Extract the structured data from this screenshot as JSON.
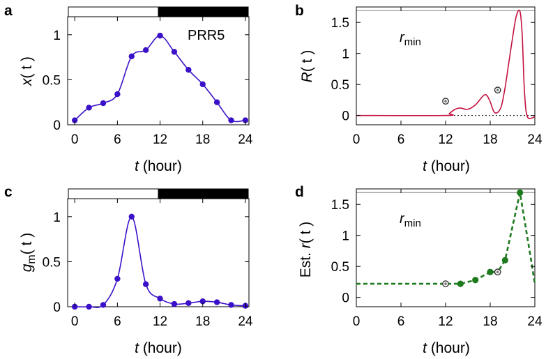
{
  "colors": {
    "blue": "#3a10c8",
    "red": "#c41040",
    "green": "#1e7a1e",
    "gray_line": "#a0a0a0"
  },
  "panels": {
    "a": {
      "letter": "a",
      "ylabel_main": "x",
      "ylabel_arg": "( t )",
      "annotation": "PRR5",
      "xlabel_var": "t",
      "xlabel_unit": " (hour)"
    },
    "b": {
      "letter": "b",
      "ylabel_main": "R",
      "ylabel_arg": "( t )",
      "annotation_main": "r",
      "annotation_sub": "min",
      "xlabel_var": "t",
      "xlabel_unit": " (hour)"
    },
    "c": {
      "letter": "c",
      "ylabel_main": "g",
      "ylabel_sub": "m",
      "ylabel_arg": "( t )",
      "xlabel_var": "t",
      "xlabel_unit": " (hour)"
    },
    "d": {
      "letter": "d",
      "ylabel_pre": "Est. ",
      "ylabel_main": "r",
      "ylabel_arg": "( t )",
      "annotation_main": "r",
      "annotation_sub": "min",
      "xlabel_var": "t",
      "xlabel_unit": " (hour)"
    }
  },
  "chart_data": [
    {
      "panel": "a",
      "type": "line",
      "xlim": [
        -1,
        24.5
      ],
      "ylim": [
        0,
        1.2
      ],
      "xticks": [
        "0",
        "6",
        "12",
        "18",
        "24"
      ],
      "yticks": [
        "0",
        "0.5",
        "1"
      ],
      "light_dark_bar": {
        "light": [
          -1,
          12
        ],
        "dark": [
          12,
          24.5
        ]
      },
      "series": [
        {
          "style": "smooth-line-with-markers",
          "color": "#3a10c8",
          "x": [
            0,
            2,
            4,
            6,
            8,
            10,
            12,
            14,
            16,
            18,
            20,
            22,
            24
          ],
          "y": [
            0.05,
            0.19,
            0.24,
            0.34,
            0.76,
            0.83,
            0.99,
            0.81,
            0.61,
            0.45,
            0.25,
            0.05,
            0.05
          ]
        }
      ]
    },
    {
      "panel": "b",
      "type": "line",
      "xlim": [
        0,
        24
      ],
      "ylim": [
        -0.15,
        1.75
      ],
      "xticks": [
        "0",
        "6",
        "12",
        "18",
        "24"
      ],
      "yticks": [
        "0",
        "0.5",
        "1",
        "1.5"
      ],
      "series": [
        {
          "style": "line",
          "color": "#c41040",
          "x": [
            0,
            12,
            12.5,
            13,
            13.5,
            14,
            15,
            16,
            17,
            17.5,
            18,
            18.5,
            19,
            19.5,
            20,
            20.5,
            21,
            21.5,
            22,
            22.3,
            22.6,
            23,
            24
          ],
          "y": [
            0,
            0,
            0.03,
            0.08,
            0.11,
            0.12,
            0.1,
            0.17,
            0.31,
            0.33,
            0.22,
            0.06,
            0.05,
            0.15,
            0.45,
            0.85,
            1.25,
            1.6,
            1.68,
            1.3,
            0.4,
            -0.02,
            -0.02
          ]
        },
        {
          "style": "open-markers",
          "x": [
            12,
            19
          ],
          "y": [
            0.23,
            0.41
          ]
        }
      ],
      "reference_lines": [
        {
          "orientation": "horizontal",
          "y": 1.69,
          "style": "solid-gray"
        },
        {
          "orientation": "horizontal",
          "y": 0,
          "style": "dotted-black"
        }
      ]
    },
    {
      "panel": "c",
      "type": "line",
      "xlim": [
        -1,
        24.5
      ],
      "ylim": [
        0,
        1.2
      ],
      "xticks": [
        "0",
        "6",
        "12",
        "18",
        "24"
      ],
      "yticks": [
        "0",
        "0.5",
        "1"
      ],
      "light_dark_bar": {
        "light": [
          -1,
          12
        ],
        "dark": [
          12,
          24.5
        ]
      },
      "series": [
        {
          "style": "smooth-line-with-markers",
          "color": "#3a10c8",
          "x": [
            0,
            2,
            4,
            6,
            8,
            10,
            12,
            14,
            16,
            18,
            20,
            22,
            24
          ],
          "y": [
            0.0,
            0.0,
            0.02,
            0.31,
            1.0,
            0.25,
            0.09,
            0.03,
            0.04,
            0.06,
            0.05,
            0.02,
            0.01
          ]
        }
      ]
    },
    {
      "panel": "d",
      "type": "line",
      "xlim": [
        0,
        24
      ],
      "ylim": [
        -0.15,
        1.75
      ],
      "xticks": [
        "0",
        "6",
        "12",
        "18",
        "24"
      ],
      "yticks": [
        "0",
        "0.5",
        "1",
        "1.5"
      ],
      "series": [
        {
          "style": "dashed-line",
          "color": "#1e7a1e",
          "x": [
            0,
            12,
            14,
            16,
            18,
            19,
            20,
            22,
            23.5,
            24
          ],
          "y": [
            0.22,
            0.22,
            0.22,
            0.28,
            0.41,
            0.41,
            0.6,
            1.69,
            0.6,
            0.22
          ]
        },
        {
          "style": "filled-markers",
          "color": "#1e7a1e",
          "x": [
            14,
            16,
            18,
            20,
            22
          ],
          "y": [
            0.22,
            0.28,
            0.41,
            0.6,
            1.69
          ]
        },
        {
          "style": "open-markers",
          "x": [
            12,
            19
          ],
          "y": [
            0.22,
            0.41
          ]
        }
      ],
      "reference_lines": [
        {
          "orientation": "horizontal",
          "y": 1.69,
          "style": "solid-gray"
        }
      ]
    }
  ]
}
